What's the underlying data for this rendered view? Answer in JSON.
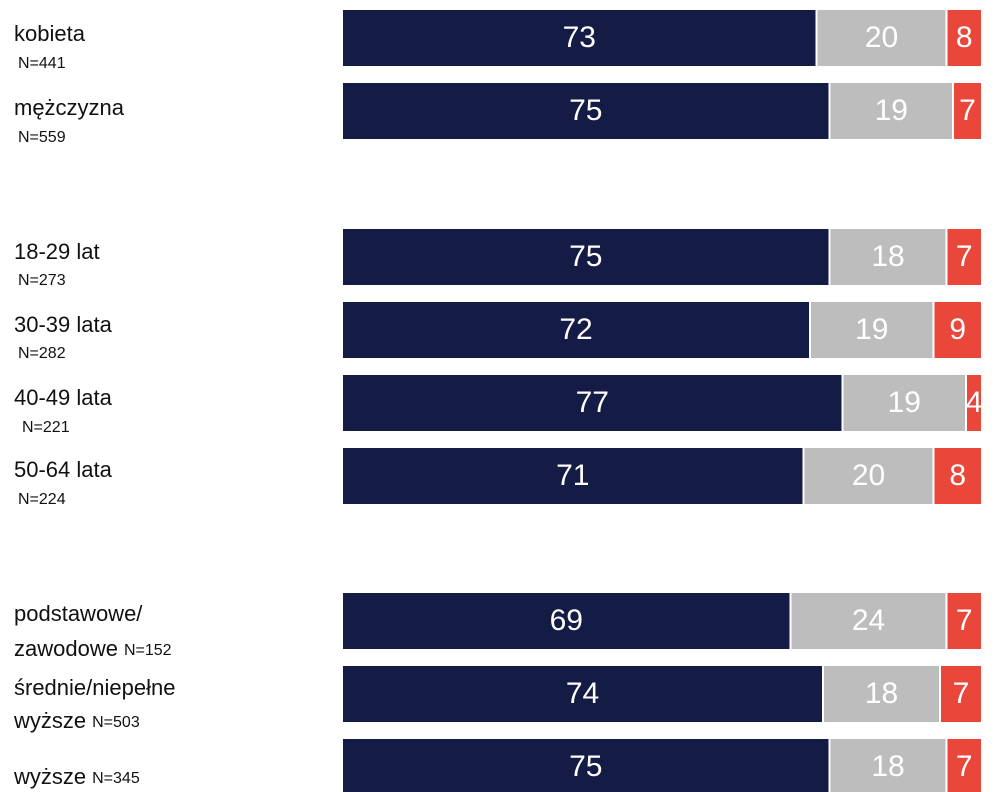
{
  "chart_data": {
    "type": "stacked-bar-horizontal",
    "categories": [
      [
        "kobieta"
      ],
      [
        "mężczyzna"
      ],
      [
        "18-29 lat"
      ],
      [
        "30-39 lata"
      ],
      [
        "40-49 lata"
      ],
      [
        "50-64 lata"
      ],
      [
        "podstawowe/",
        "zawodowe"
      ],
      [
        "średnie/niepełne",
        "wyższe"
      ],
      [
        "wyższe"
      ]
    ],
    "n_labels": [
      "N=441",
      "N=559",
      "N=273",
      "N=282",
      "N=221",
      "N=224",
      "N=152",
      "N=503",
      "N=345"
    ],
    "series": [
      {
        "color": "#141c45",
        "values": [
          73,
          75,
          75,
          72,
          77,
          71,
          69,
          74,
          75
        ]
      },
      {
        "color": "#bdbdbd",
        "values": [
          20,
          19,
          18,
          19,
          19,
          20,
          24,
          18,
          18
        ]
      },
      {
        "color": "#e8473a",
        "values": [
          8,
          7,
          7,
          9,
          4,
          8,
          7,
          7,
          7
        ]
      }
    ]
  }
}
